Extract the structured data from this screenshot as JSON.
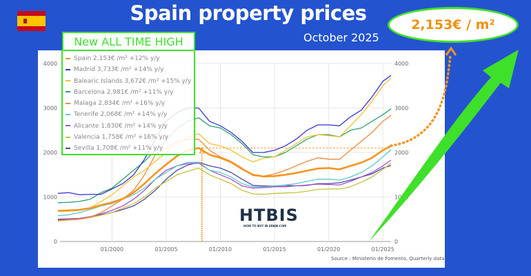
{
  "header": {
    "title": "Spain property prices",
    "subtitle": "October 2025",
    "highlight": "2,153€ / m²",
    "badge": "New ALL TIME HIGH",
    "flag_icon": "spain-flag"
  },
  "source": "Source : Ministerio de Fomento, Quarterly data",
  "logo": {
    "text": "HTBIS",
    "tagline": "HOW TO BUY IN SPAIN.COM"
  },
  "colors": {
    "background": "#2453cf",
    "accent_green": "#3fe02a",
    "accent_orange": "#f0900f"
  },
  "chart_data": {
    "type": "line",
    "title": "",
    "xlabel": "",
    "ylabel": "",
    "x_ticks": [
      "01/2000",
      "01/2005",
      "01/2010",
      "01/2015",
      "01/2020",
      "01/2025"
    ],
    "y_ticks": [
      "0",
      "1000",
      "2000",
      "3000",
      "4000"
    ],
    "ylim": [
      0,
      4000
    ],
    "xlim": [
      1995.2,
      2025.75
    ],
    "grid": true,
    "legend_placement": "top-left",
    "x": [
      1995,
      1996,
      1997,
      1998,
      1999,
      2000,
      2001,
      2002,
      2003,
      2004,
      2005,
      2006,
      2007,
      2008,
      2009,
      2010,
      2011,
      2012,
      2013,
      2014,
      2015,
      2016,
      2017,
      2018,
      2019,
      2020,
      2021,
      2022,
      2023,
      2024,
      2025,
      2025.75
    ],
    "annotations": {
      "peak_marker_x": 2008.3,
      "reference_level": 2100
    },
    "series": [
      {
        "name": "Spain",
        "label": "Spain  2,153€ /m²  +12% y/y",
        "color": "#f7941d",
        "values": [
          690,
          700,
          710,
          750,
          820,
          880,
          960,
          1100,
          1300,
          1530,
          1730,
          1920,
          2050,
          2100,
          1950,
          1880,
          1780,
          1630,
          1500,
          1460,
          1470,
          1500,
          1540,
          1590,
          1640,
          1650,
          1620,
          1700,
          1770,
          1880,
          2050,
          2153
        ]
      },
      {
        "name": "Madrid",
        "label": "Madrid 3,733€ /m²  +14% y/y",
        "color": "#3434d8",
        "values": [
          1080,
          1100,
          1050,
          1060,
          1060,
          1180,
          1300,
          1500,
          1850,
          2300,
          2700,
          2900,
          3000,
          3000,
          2700,
          2600,
          2450,
          2250,
          2000,
          2000,
          2050,
          2150,
          2300,
          2500,
          2620,
          2620,
          2600,
          2800,
          2950,
          3250,
          3600,
          3733
        ]
      },
      {
        "name": "Balearic Islands",
        "label": "Balearic Islands 3,672€ /m²  +15% y/y",
        "color": "#f2c230",
        "values": [
          680,
          680,
          700,
          760,
          900,
          1050,
          1250,
          1450,
          1600,
          1800,
          2000,
          2200,
          2350,
          2420,
          2200,
          2150,
          2050,
          1900,
          1790,
          1870,
          1900,
          2050,
          2200,
          2350,
          2400,
          2380,
          2350,
          2600,
          2850,
          3150,
          3500,
          3672
        ]
      },
      {
        "name": "Barcelona",
        "label": "Barcelona 2,981€ /m²  +11% y/y",
        "color": "#2e9e6b",
        "values": [
          870,
          880,
          900,
          950,
          1100,
          1200,
          1400,
          1600,
          1800,
          2050,
          2250,
          2550,
          2700,
          2780,
          2600,
          2550,
          2400,
          2200,
          1950,
          1900,
          1900,
          2000,
          2150,
          2300,
          2400,
          2400,
          2350,
          2500,
          2550,
          2700,
          2850,
          2981
        ]
      },
      {
        "name": "Malaga",
        "label": "Malaga 2,834€ /m²  +16% y/y",
        "color": "#f08a3a",
        "values": [
          470,
          490,
          500,
          550,
          650,
          800,
          950,
          1150,
          1500,
          1950,
          2100,
          2250,
          2300,
          2300,
          2050,
          1900,
          1800,
          1650,
          1480,
          1470,
          1520,
          1600,
          1700,
          1800,
          1880,
          1850,
          1850,
          2050,
          2250,
          2450,
          2700,
          2834
        ]
      },
      {
        "name": "Tenerife",
        "label": "Tenerife 2,068€ /m²  +14% y/y",
        "color": "#5cc9c9",
        "values": [
          580,
          600,
          650,
          720,
          800,
          850,
          950,
          1050,
          1200,
          1400,
          1550,
          1700,
          1780,
          1780,
          1600,
          1550,
          1450,
          1300,
          1230,
          1230,
          1250,
          1270,
          1300,
          1350,
          1400,
          1400,
          1380,
          1450,
          1550,
          1700,
          1900,
          2068
        ]
      },
      {
        "name": "Alicante",
        "label": "Alicante 1,830€ /m²  +14% y/y",
        "color": "#a64fc9",
        "values": [
          480,
          500,
          520,
          560,
          620,
          700,
          800,
          950,
          1150,
          1400,
          1600,
          1700,
          1750,
          1760,
          1600,
          1500,
          1400,
          1250,
          1200,
          1210,
          1230,
          1230,
          1250,
          1270,
          1290,
          1280,
          1270,
          1350,
          1450,
          1550,
          1700,
          1830
        ]
      },
      {
        "name": "Valencia",
        "label": "Valencia 1,758€ /m²  +16% y/y",
        "color": "#c2c23c",
        "values": [
          460,
          480,
          500,
          540,
          590,
          650,
          750,
          850,
          1000,
          1200,
          1350,
          1500,
          1580,
          1650,
          1500,
          1400,
          1300,
          1150,
          1070,
          1060,
          1080,
          1090,
          1100,
          1130,
          1170,
          1180,
          1180,
          1230,
          1330,
          1450,
          1620,
          1758
        ]
      },
      {
        "name": "Sevilla",
        "label": "Sevilla 1,708€ /m²  +11% y/y",
        "color": "#4b47a8",
        "values": [
          500,
          510,
          520,
          540,
          600,
          650,
          720,
          800,
          950,
          1150,
          1400,
          1600,
          1720,
          1780,
          1700,
          1650,
          1550,
          1400,
          1260,
          1250,
          1250,
          1260,
          1250,
          1260,
          1300,
          1300,
          1320,
          1380,
          1450,
          1520,
          1650,
          1708
        ]
      }
    ]
  }
}
